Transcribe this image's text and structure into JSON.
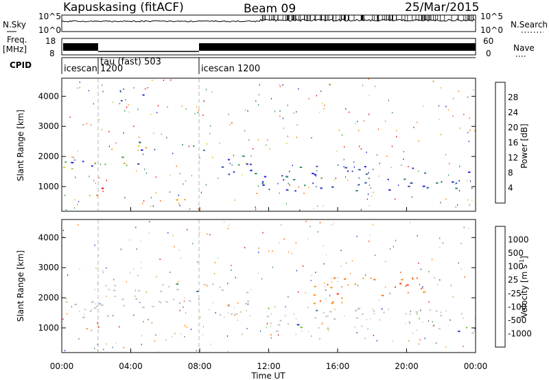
{
  "header": {
    "station": "Kapuskasing (fitACF)",
    "beam": "Beam 09",
    "date": "25/Mar/2015"
  },
  "strip_labels": {
    "nsky": "N.Sky",
    "nsky_top": "10^5",
    "nsky_bottom": "10^0",
    "nsearch": "N.Search",
    "nsearch_top": "10^5",
    "nsearch_bottom": "10^0",
    "freq": "Freq.",
    "freq_unit": "[MHz]",
    "freq_top": "18",
    "freq_bottom": "8",
    "nave": "Nave",
    "nave_top": "60",
    "nave_bottom": "0",
    "cpid": "CPID"
  },
  "cpid_segments": [
    {
      "start_hr": 0.0,
      "label": "icescan"
    },
    {
      "start_hr": 1.8,
      "label": "tau (fast) 503",
      "sublabel": "1200"
    },
    {
      "start_hr": 7.9,
      "label": "icescan 1200"
    }
  ],
  "colors": {
    "power_scale": [
      "#1e1ee6",
      "#2a4fa0",
      "#2e8a64",
      "#44aa44",
      "#c8d23c",
      "#f0a000",
      "#f07800",
      "#ff5000",
      "#ff0000"
    ],
    "velocity_scale": [
      "#1e3cc8",
      "#3a6e9e",
      "#3c9650",
      "#6ec83c",
      "#c0c0c0",
      "#c8c8c8",
      "#f0a020",
      "#ff7800",
      "#ff3c00",
      "#e60000"
    ],
    "strip_line": "#000000",
    "dashed_line": "#b4b4b4"
  },
  "chart_data": [
    {
      "type": "heatmap",
      "title": "",
      "xlabel": "Time UT",
      "ylabel": "Slant Range [km]",
      "xlim": [
        0,
        24
      ],
      "ylim": [
        180,
        4600
      ],
      "x_tick_labels": [
        "00:00",
        "04:00",
        "08:00",
        "12:00",
        "16:00",
        "20:00",
        "00:00"
      ],
      "y_ticks": [
        1000,
        2000,
        3000,
        4000
      ],
      "colorbar_label": "Power [dB]",
      "colorbar_ticks": [
        "4",
        "8",
        "12",
        "16",
        "20",
        "24",
        "28"
      ],
      "regions": [
        {
          "t0": 0.0,
          "t1": 2.2,
          "r0": 1450,
          "r1": 2100,
          "level": "mid",
          "desc": "early band"
        },
        {
          "t0": 1.3,
          "t1": 2.7,
          "r0": 700,
          "r1": 1400,
          "level": "high",
          "desc": "strong echoes"
        },
        {
          "t0": 2.2,
          "t1": 5.0,
          "r0": 1700,
          "r1": 2300,
          "level": "mid",
          "desc": "rising band"
        },
        {
          "t0": 4.0,
          "t1": 9.0,
          "r0": 2200,
          "r1": 2500,
          "level": "mid",
          "desc": "high band"
        },
        {
          "t0": 9.0,
          "t1": 11.5,
          "r0": 1400,
          "r1": 2300,
          "level": "low",
          "desc": "descending band"
        },
        {
          "t0": 5.5,
          "t1": 8.0,
          "r0": 350,
          "r1": 600,
          "level": "high",
          "desc": "near range patch"
        },
        {
          "t0": 11.5,
          "t1": 24.0,
          "r0": 850,
          "r1": 1700,
          "level": "low",
          "desc": "afternoon band"
        },
        {
          "t0": 3.3,
          "t1": 5.0,
          "r0": 3800,
          "r1": 4300,
          "level": "low",
          "desc": "far range"
        }
      ]
    },
    {
      "type": "heatmap",
      "title": "",
      "xlabel": "Time UT",
      "ylabel": "Slant Range [km]",
      "xlim": [
        0,
        24
      ],
      "ylim": [
        180,
        4600
      ],
      "x_tick_labels": [
        "00:00",
        "04:00",
        "08:00",
        "12:00",
        "16:00",
        "20:00",
        "00:00"
      ],
      "y_ticks": [
        1000,
        2000,
        3000,
        4000
      ],
      "colorbar_label": "Velocity [m s^-1]",
      "colorbar_ticks": [
        "1000",
        "500",
        "100",
        "25",
        "-25",
        "-100",
        "-500",
        "-1000"
      ],
      "regions": [
        {
          "t0": 0.0,
          "t1": 2.2,
          "r0": 1300,
          "r1": 2000,
          "level": "grey"
        },
        {
          "t0": 1.3,
          "t1": 2.7,
          "r0": 700,
          "r1": 1200,
          "level": "neg"
        },
        {
          "t0": 2.2,
          "t1": 9.0,
          "r0": 1700,
          "r1": 2500,
          "level": "grey"
        },
        {
          "t0": 9.0,
          "t1": 11.5,
          "r0": 1400,
          "r1": 2300,
          "level": "grey"
        },
        {
          "t0": 11.5,
          "t1": 24.0,
          "r0": 850,
          "r1": 1700,
          "level": "grey"
        },
        {
          "t0": 14.5,
          "t1": 21.0,
          "r0": 1800,
          "r1": 2700,
          "level": "neg"
        }
      ]
    }
  ]
}
